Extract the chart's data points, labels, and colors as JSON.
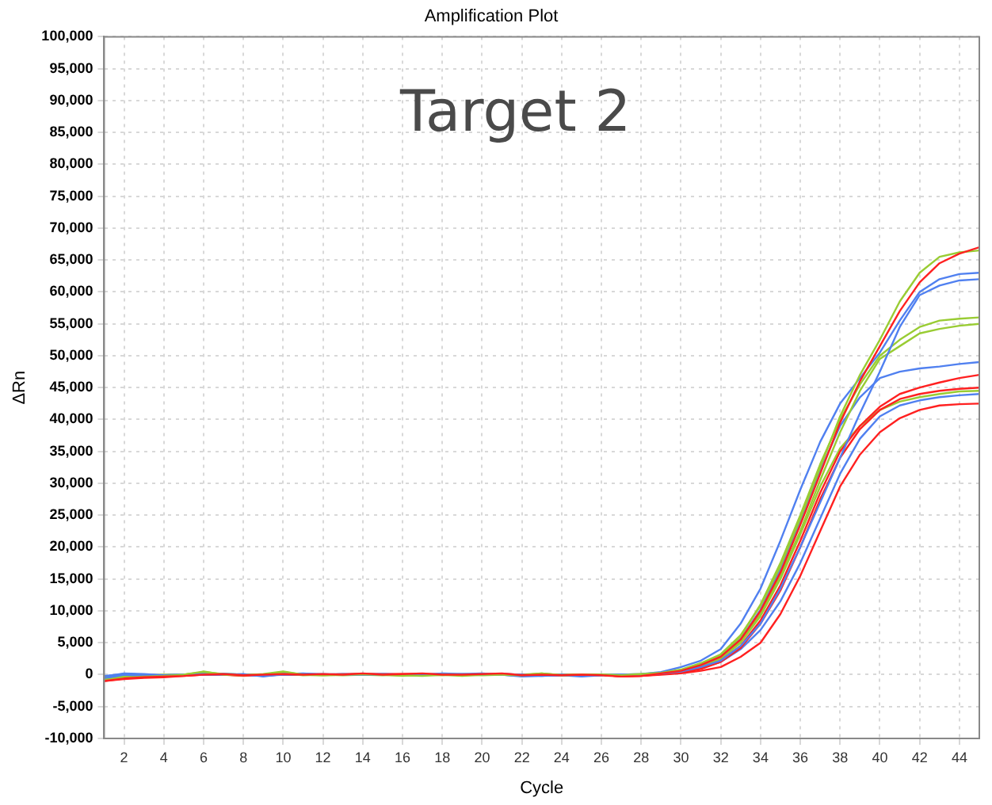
{
  "chart_data": {
    "type": "line",
    "title": "Amplification Plot",
    "xlabel": "Cycle",
    "ylabel": "ΔRn",
    "annotations": [
      "Target 2"
    ],
    "x": [
      1,
      2,
      3,
      4,
      5,
      6,
      7,
      8,
      9,
      10,
      11,
      12,
      13,
      14,
      15,
      16,
      17,
      18,
      19,
      20,
      21,
      22,
      23,
      24,
      25,
      26,
      27,
      28,
      29,
      30,
      31,
      32,
      33,
      34,
      35,
      36,
      37,
      38,
      39,
      40,
      41,
      42,
      43,
      44,
      45
    ],
    "xlim": [
      1,
      45
    ],
    "xticks": [
      2,
      4,
      6,
      8,
      10,
      12,
      14,
      16,
      18,
      20,
      22,
      24,
      26,
      28,
      30,
      32,
      34,
      36,
      38,
      40,
      42,
      44
    ],
    "ylim": [
      -10000,
      100000
    ],
    "yticks": [
      {
        "value": -10000,
        "label": "-10,000"
      },
      {
        "value": -5000,
        "label": "-5,000"
      },
      0,
      {
        "value": 5000,
        "label": "5,000"
      },
      {
        "value": 10000,
        "label": "10,000"
      },
      {
        "value": 15000,
        "label": "15,000"
      },
      {
        "value": 20000,
        "label": "20,000"
      },
      {
        "value": 25000,
        "label": "25,000"
      },
      {
        "value": 30000,
        "label": "30,000"
      },
      {
        "value": 35000,
        "label": "35,000"
      },
      {
        "value": 40000,
        "label": "40,000"
      },
      {
        "value": 45000,
        "label": "45,000"
      },
      {
        "value": 50000,
        "label": "50,000"
      },
      {
        "value": 55000,
        "label": "55,000"
      },
      {
        "value": 60000,
        "label": "60,000"
      },
      {
        "value": 65000,
        "label": "65,000"
      },
      {
        "value": 70000,
        "label": "70,000"
      },
      {
        "value": 75000,
        "label": "75,000"
      },
      {
        "value": 80000,
        "label": "80,000"
      },
      {
        "value": 85000,
        "label": "85,000"
      },
      {
        "value": 90000,
        "label": "90,000"
      },
      {
        "value": 95000,
        "label": "95,000"
      },
      {
        "value": 100000,
        "label": "100,000"
      }
    ],
    "grid": true,
    "legend": false,
    "marker": "none",
    "line_style": "solid",
    "series": [
      {
        "color": "#ff2020",
        "values": [
          -1000,
          -600,
          -400,
          -300,
          -200,
          0,
          100,
          -100,
          0,
          100,
          0,
          100,
          0,
          200,
          0,
          100,
          200,
          0,
          0,
          100,
          200,
          -100,
          0,
          -100,
          0,
          -100,
          -300,
          -200,
          200,
          600,
          1500,
          2800,
          5500,
          10000,
          16000,
          23500,
          31500,
          39500,
          46000,
          51500,
          57000,
          61500,
          64500,
          66000,
          67000
        ]
      },
      {
        "color": "#99cc33",
        "values": [
          -800,
          -500,
          -300,
          -200,
          0,
          500,
          0,
          -100,
          100,
          500,
          0,
          -100,
          0,
          100,
          0,
          -100,
          -200,
          0,
          -100,
          0,
          0,
          -100,
          200,
          -100,
          0,
          0,
          -100,
          100,
          300,
          800,
          1800,
          3200,
          6200,
          10800,
          17000,
          24500,
          32500,
          40500,
          47000,
          52500,
          58500,
          63000,
          65500,
          66200,
          66500
        ]
      },
      {
        "color": "#5080f0",
        "values": [
          -300,
          200,
          100,
          -100,
          0,
          100,
          0,
          100,
          -300,
          100,
          200,
          0,
          100,
          0,
          100,
          0,
          -100,
          200,
          100,
          200,
          0,
          -300,
          -200,
          -100,
          -300,
          -100,
          0,
          100,
          400,
          1200,
          2200,
          4000,
          8000,
          13500,
          21000,
          29000,
          36500,
          42500,
          46500,
          50500,
          55500,
          60000,
          62000,
          62800,
          63000
        ]
      },
      {
        "color": "#5080f0",
        "values": [
          -600,
          0,
          -200,
          -100,
          0,
          0,
          100,
          0,
          -100,
          0,
          100,
          0,
          0,
          100,
          0,
          0,
          100,
          0,
          100,
          0,
          100,
          0,
          -200,
          0,
          -200,
          -100,
          0,
          0,
          200,
          500,
          1200,
          2200,
          4500,
          8000,
          13500,
          20000,
          27000,
          34000,
          41000,
          47500,
          54500,
          59500,
          61000,
          61800,
          62000
        ]
      },
      {
        "color": "#99cc33",
        "values": [
          -500,
          -300,
          -100,
          0,
          0,
          300,
          0,
          0,
          0,
          300,
          0,
          0,
          0,
          0,
          -100,
          0,
          0,
          -100,
          0,
          0,
          0,
          -100,
          100,
          0,
          -100,
          0,
          0,
          0,
          300,
          700,
          1600,
          3000,
          6000,
          11000,
          17500,
          25000,
          33000,
          40000,
          45500,
          50000,
          52500,
          54500,
          55500,
          55800,
          56000
        ]
      },
      {
        "color": "#99cc33",
        "values": [
          -700,
          -400,
          -200,
          -100,
          0,
          200,
          100,
          0,
          0,
          200,
          -100,
          0,
          -100,
          0,
          0,
          -200,
          0,
          0,
          -200,
          0,
          0,
          -200,
          100,
          -100,
          0,
          -100,
          0,
          100,
          300,
          600,
          1400,
          2700,
          5300,
          9500,
          15500,
          22500,
          30500,
          38000,
          44500,
          49500,
          51500,
          53500,
          54200,
          54700,
          55000
        ]
      },
      {
        "color": "#5080f0",
        "values": [
          -200,
          100,
          0,
          -200,
          0,
          0,
          100,
          0,
          -200,
          0,
          100,
          100,
          0,
          0,
          0,
          0,
          0,
          100,
          0,
          100,
          0,
          -200,
          0,
          -100,
          -200,
          0,
          -100,
          0,
          200,
          600,
          1500,
          2800,
          5600,
          10200,
          16500,
          24000,
          32000,
          39000,
          43500,
          46500,
          47500,
          48000,
          48300,
          48700,
          49000
        ]
      },
      {
        "color": "#ff2020",
        "values": [
          -900,
          -500,
          -300,
          -300,
          -100,
          0,
          0,
          -100,
          0,
          0,
          0,
          0,
          0,
          100,
          100,
          100,
          100,
          0,
          0,
          0,
          100,
          0,
          -100,
          -100,
          0,
          0,
          -200,
          -200,
          100,
          400,
          1000,
          2200,
          4500,
          8500,
          14000,
          21000,
          28500,
          35000,
          39000,
          42000,
          44000,
          45000,
          45800,
          46500,
          47000
        ]
      },
      {
        "color": "#ff2020",
        "values": [
          -700,
          -400,
          -300,
          -200,
          -100,
          100,
          0,
          0,
          -100,
          100,
          0,
          0,
          100,
          100,
          0,
          0,
          0,
          100,
          0,
          100,
          0,
          0,
          -100,
          0,
          -100,
          0,
          -300,
          -100,
          100,
          300,
          900,
          2000,
          4200,
          8000,
          13200,
          20000,
          27500,
          34000,
          38500,
          41500,
          43200,
          44000,
          44500,
          44800,
          45000
        ]
      },
      {
        "color": "#99cc33",
        "values": [
          -600,
          -400,
          -200,
          -100,
          0,
          400,
          100,
          0,
          0,
          400,
          0,
          -100,
          0,
          0,
          0,
          -100,
          -100,
          0,
          0,
          -100,
          0,
          0,
          200,
          -100,
          0,
          0,
          0,
          0,
          200,
          500,
          1300,
          2500,
          5000,
          9200,
          15000,
          22000,
          29500,
          35500,
          39000,
          41500,
          42800,
          43500,
          44000,
          44400,
          44500
        ]
      },
      {
        "color": "#5080f0",
        "values": [
          -400,
          100,
          0,
          -100,
          0,
          100,
          100,
          0,
          -200,
          100,
          100,
          0,
          0,
          0,
          100,
          0,
          0,
          100,
          0,
          100,
          100,
          -100,
          -100,
          0,
          -200,
          0,
          0,
          0,
          200,
          400,
          1000,
          2000,
          4000,
          7000,
          11500,
          17500,
          24500,
          31500,
          37000,
          40500,
          42200,
          43000,
          43500,
          43800,
          44000
        ]
      },
      {
        "color": "#ff2020",
        "values": [
          -1000,
          -700,
          -500,
          -400,
          -200,
          0,
          0,
          -200,
          0,
          0,
          0,
          0,
          0,
          100,
          0,
          0,
          100,
          0,
          0,
          0,
          100,
          0,
          0,
          -100,
          0,
          0,
          -300,
          -200,
          0,
          200,
          600,
          1200,
          2800,
          5000,
          9500,
          15500,
          22500,
          29500,
          34500,
          38000,
          40200,
          41500,
          42200,
          42400,
          42500
        ]
      }
    ]
  }
}
